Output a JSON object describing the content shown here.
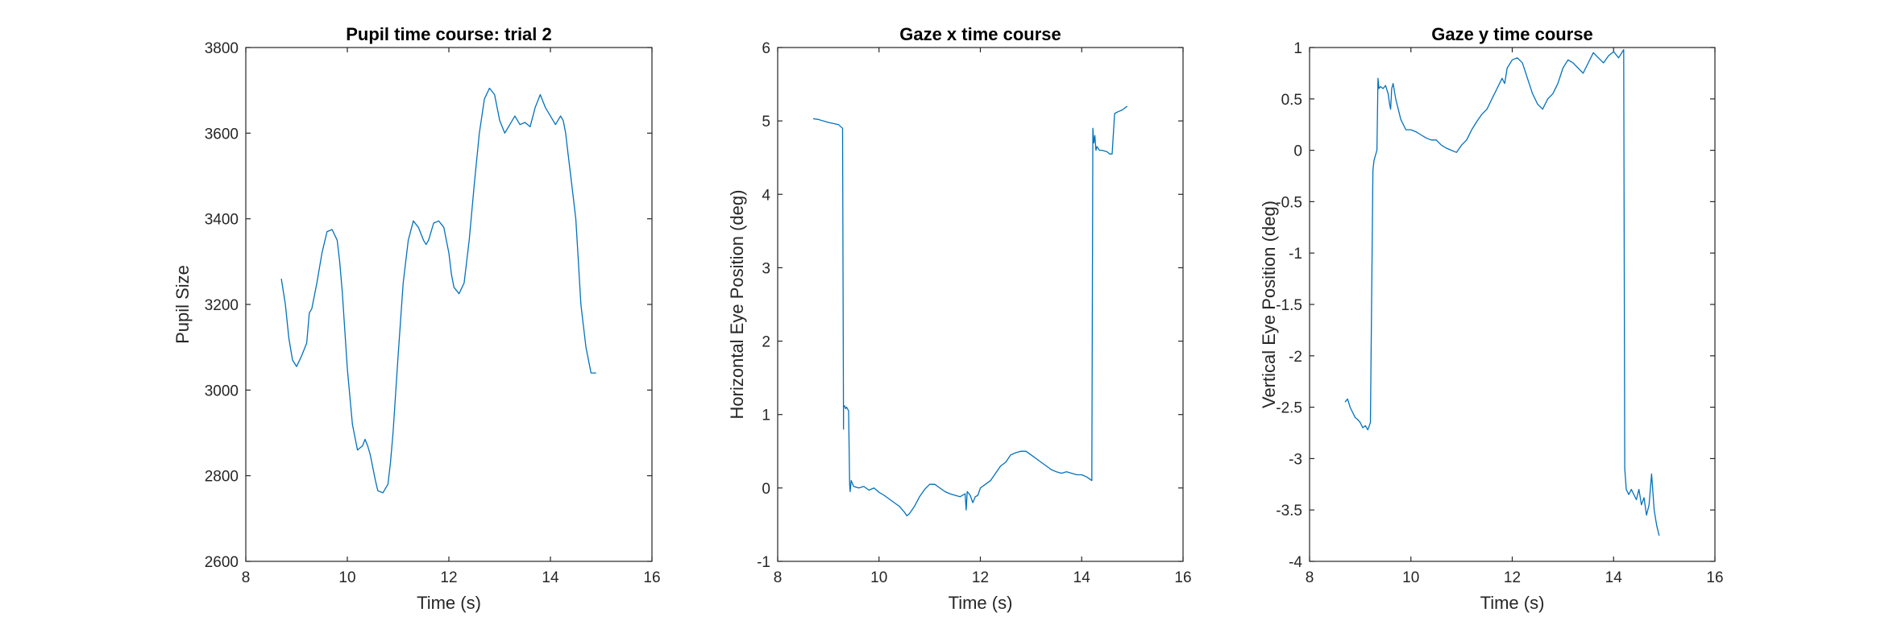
{
  "chart_data": [
    {
      "type": "line",
      "title": "Pupil time course: trial 2",
      "xlabel": "Time (s)",
      "ylabel": "Pupil Size",
      "xlim": [
        8,
        16
      ],
      "ylim": [
        2600,
        3800
      ],
      "xticks": [
        8,
        10,
        12,
        14,
        16
      ],
      "yticks": [
        2600,
        2800,
        3000,
        3200,
        3400,
        3600,
        3800
      ],
      "color": "#0072bd",
      "grid": false,
      "series": [
        {
          "x": [
            8.7,
            8.78,
            8.85,
            8.92,
            9.0,
            9.1,
            9.2,
            9.25,
            9.3,
            9.4,
            9.5,
            9.6,
            9.7,
            9.8,
            9.85,
            9.9,
            10.0,
            10.1,
            10.2,
            10.3,
            10.35,
            10.4,
            10.45,
            10.5,
            10.55,
            10.6,
            10.7,
            10.8,
            10.85,
            10.9,
            11.0,
            11.1,
            11.2,
            11.3,
            11.4,
            11.5,
            11.55,
            11.6,
            11.7,
            11.8,
            11.9,
            12.0,
            12.05,
            12.1,
            12.2,
            12.3,
            12.4,
            12.5,
            12.6,
            12.7,
            12.8,
            12.9,
            13.0,
            13.1,
            13.15,
            13.2,
            13.3,
            13.4,
            13.5,
            13.6,
            13.7,
            13.8,
            13.9,
            14.0,
            14.1,
            14.2,
            14.25,
            14.3,
            14.35,
            14.4,
            14.5,
            14.55,
            14.6,
            14.7,
            14.8,
            14.9
          ],
          "y": [
            3260,
            3200,
            3120,
            3070,
            3055,
            3080,
            3110,
            3180,
            3190,
            3250,
            3320,
            3370,
            3375,
            3350,
            3300,
            3230,
            3050,
            2920,
            2860,
            2870,
            2885,
            2870,
            2850,
            2820,
            2790,
            2765,
            2760,
            2780,
            2830,
            2900,
            3080,
            3250,
            3350,
            3395,
            3380,
            3350,
            3340,
            3350,
            3390,
            3395,
            3380,
            3320,
            3270,
            3240,
            3225,
            3250,
            3350,
            3480,
            3600,
            3680,
            3705,
            3690,
            3630,
            3600,
            3610,
            3620,
            3640,
            3620,
            3625,
            3615,
            3660,
            3690,
            3660,
            3640,
            3620,
            3640,
            3630,
            3600,
            3550,
            3500,
            3400,
            3300,
            3200,
            3100,
            3040,
            3040
          ]
        }
      ]
    },
    {
      "type": "line",
      "title": "Gaze x time course",
      "xlabel": "Time (s)",
      "ylabel": "Horizontal Eye Position (deg)",
      "xlim": [
        8,
        16
      ],
      "ylim": [
        -1,
        6
      ],
      "xticks": [
        8,
        10,
        12,
        14,
        16
      ],
      "yticks": [
        -1,
        0,
        1,
        2,
        3,
        4,
        5,
        6
      ],
      "color": "#0072bd",
      "grid": false,
      "series": [
        {
          "x": [
            8.7,
            8.8,
            9.0,
            9.2,
            9.28,
            9.3,
            9.3,
            9.32,
            9.34,
            9.36,
            9.4,
            9.42,
            9.43,
            9.45,
            9.5,
            9.6,
            9.7,
            9.8,
            9.9,
            10.0,
            10.1,
            10.2,
            10.3,
            10.4,
            10.5,
            10.55,
            10.6,
            10.7,
            10.8,
            10.9,
            11.0,
            11.1,
            11.2,
            11.3,
            11.4,
            11.5,
            11.6,
            11.7,
            11.72,
            11.74,
            11.8,
            11.85,
            11.9,
            11.95,
            12.0,
            12.1,
            12.2,
            12.3,
            12.4,
            12.5,
            12.6,
            12.7,
            12.8,
            12.9,
            13.0,
            13.1,
            13.2,
            13.3,
            13.4,
            13.5,
            13.6,
            13.7,
            13.8,
            13.9,
            14.0,
            14.1,
            14.2,
            14.22,
            14.24,
            14.26,
            14.28,
            14.3,
            14.35,
            14.4,
            14.5,
            14.55,
            14.6,
            14.65,
            14.7,
            14.8,
            14.9
          ],
          "y": [
            5.03,
            5.02,
            4.98,
            4.95,
            4.9,
            0.8,
            1.1,
            1.12,
            1.08,
            1.1,
            1.05,
            0.05,
            -0.05,
            0.1,
            0.02,
            0.0,
            0.02,
            -0.03,
            0.0,
            -0.06,
            -0.1,
            -0.15,
            -0.2,
            -0.25,
            -0.33,
            -0.38,
            -0.35,
            -0.25,
            -0.12,
            -0.02,
            0.05,
            0.05,
            0.0,
            -0.05,
            -0.08,
            -0.1,
            -0.12,
            -0.08,
            -0.3,
            -0.05,
            -0.1,
            -0.2,
            -0.12,
            -0.1,
            0.0,
            0.05,
            0.1,
            0.2,
            0.3,
            0.35,
            0.45,
            0.48,
            0.5,
            0.5,
            0.45,
            0.4,
            0.35,
            0.3,
            0.25,
            0.22,
            0.2,
            0.22,
            0.2,
            0.18,
            0.18,
            0.15,
            0.1,
            4.9,
            4.7,
            4.8,
            4.6,
            4.65,
            4.6,
            4.6,
            4.58,
            4.55,
            4.55,
            5.1,
            5.12,
            5.15,
            5.2
          ]
        }
      ]
    },
    {
      "type": "line",
      "title": "Gaze y time course",
      "xlabel": "Time (s)",
      "ylabel": "Vertical Eye Position (deg)",
      "xlim": [
        8,
        16
      ],
      "ylim": [
        -4,
        1
      ],
      "xticks": [
        8,
        10,
        12,
        14,
        16
      ],
      "yticks": [
        -4,
        -3.5,
        -3,
        -2.5,
        -2,
        -1.5,
        -1,
        -0.5,
        0,
        0.5,
        1
      ],
      "color": "#0072bd",
      "grid": false,
      "series": [
        {
          "x": [
            8.7,
            8.75,
            8.8,
            8.85,
            8.9,
            8.95,
            9.0,
            9.05,
            9.1,
            9.15,
            9.2,
            9.25,
            9.27,
            9.3,
            9.33,
            9.35,
            9.37,
            9.4,
            9.45,
            9.5,
            9.55,
            9.58,
            9.6,
            9.62,
            9.65,
            9.7,
            9.8,
            9.9,
            10.0,
            10.1,
            10.2,
            10.3,
            10.4,
            10.5,
            10.6,
            10.7,
            10.8,
            10.9,
            11.0,
            11.1,
            11.2,
            11.3,
            11.4,
            11.5,
            11.6,
            11.7,
            11.8,
            11.85,
            11.9,
            12.0,
            12.1,
            12.2,
            12.3,
            12.4,
            12.5,
            12.6,
            12.7,
            12.8,
            12.9,
            13.0,
            13.1,
            13.2,
            13.3,
            13.4,
            13.5,
            13.6,
            13.7,
            13.8,
            13.9,
            14.0,
            14.1,
            14.2,
            14.22,
            14.25,
            14.3,
            14.35,
            14.4,
            14.45,
            14.5,
            14.55,
            14.6,
            14.65,
            14.7,
            14.75,
            14.8,
            14.85,
            14.9
          ],
          "y": [
            -2.45,
            -2.42,
            -2.5,
            -2.55,
            -2.6,
            -2.62,
            -2.65,
            -2.7,
            -2.68,
            -2.72,
            -2.65,
            -0.2,
            -0.1,
            -0.05,
            0.0,
            0.7,
            0.6,
            0.62,
            0.6,
            0.63,
            0.55,
            0.45,
            0.4,
            0.6,
            0.65,
            0.5,
            0.3,
            0.2,
            0.2,
            0.18,
            0.15,
            0.12,
            0.1,
            0.1,
            0.05,
            0.02,
            0.0,
            -0.02,
            0.05,
            0.1,
            0.2,
            0.28,
            0.35,
            0.4,
            0.5,
            0.6,
            0.7,
            0.65,
            0.8,
            0.88,
            0.9,
            0.85,
            0.7,
            0.55,
            0.45,
            0.4,
            0.5,
            0.55,
            0.65,
            0.8,
            0.88,
            0.85,
            0.8,
            0.75,
            0.85,
            0.95,
            0.9,
            0.85,
            0.92,
            0.96,
            0.9,
            0.98,
            -3.1,
            -3.3,
            -3.35,
            -3.3,
            -3.35,
            -3.4,
            -3.3,
            -3.45,
            -3.38,
            -3.55,
            -3.45,
            -3.15,
            -3.5,
            -3.65,
            -3.75
          ]
        }
      ]
    }
  ]
}
